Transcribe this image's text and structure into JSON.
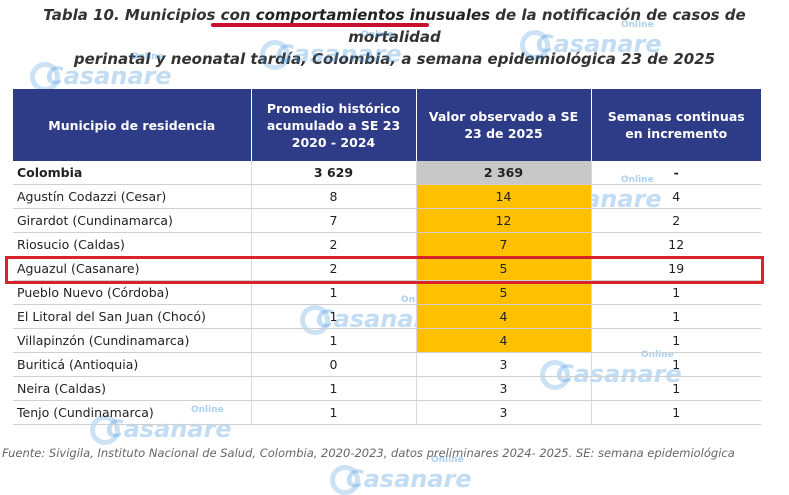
{
  "title": {
    "prefix": "Tabla 10. Municipios con ",
    "emphasis": "comportamientos inusuales",
    "suffix": " de la notificación de casos de mortalidad",
    "line2": "perinatal y neonatal tardía, Colombia, a semana epidemiológica 23 de 2025"
  },
  "table": {
    "headers": [
      "Municipio de residencia",
      "Promedio histórico acumulado a SE 23 2020 - 2024",
      "Valor observado a SE 23 de 2025",
      "Semanas continuas en incremento"
    ],
    "rows": [
      {
        "municipio": "Colombia",
        "promedio": "3 629",
        "observado": "2 369",
        "semanas": "-"
      },
      {
        "municipio": "Agustín Codazzi (Cesar)",
        "promedio": "8",
        "observado": "14",
        "semanas": "4"
      },
      {
        "municipio": "Girardot (Cundinamarca)",
        "promedio": "7",
        "observado": "12",
        "semanas": "2"
      },
      {
        "municipio": "Riosucio (Caldas)",
        "promedio": "2",
        "observado": "7",
        "semanas": "12"
      },
      {
        "municipio": "Aguazul (Casanare)",
        "promedio": "2",
        "observado": "5",
        "semanas": "19"
      },
      {
        "municipio": "Pueblo Nuevo (Córdoba)",
        "promedio": "1",
        "observado": "5",
        "semanas": "1"
      },
      {
        "municipio": "El Litoral del San Juan (Chocó)",
        "promedio": "1",
        "observado": "4",
        "semanas": "1"
      },
      {
        "municipio": "Villapinzón (Cundinamarca)",
        "promedio": "1",
        "observado": "4",
        "semanas": "1"
      },
      {
        "municipio": "Buriticá (Antioquia)",
        "promedio": "0",
        "observado": "3",
        "semanas": "1"
      },
      {
        "municipio": "Neira (Caldas)",
        "promedio": "1",
        "observado": "3",
        "semanas": "1"
      },
      {
        "municipio": "Tenjo (Cundinamarca)",
        "promedio": "1",
        "observado": "3",
        "semanas": "1"
      }
    ]
  },
  "source": "Fuente: Sivigila, Instituto Nacional de Salud, Colombia, 2020-2023, datos preliminares 2024- 2025. SE: semana epidemiológica",
  "watermark": {
    "brand": "Casanare",
    "tag": "Online"
  },
  "colors": {
    "header": "#2e3b86",
    "observed_highlight": "#ffc000",
    "national_highlight": "#c8c8c8",
    "row_box": "#d8232a",
    "title_underline": "#c8102e"
  }
}
